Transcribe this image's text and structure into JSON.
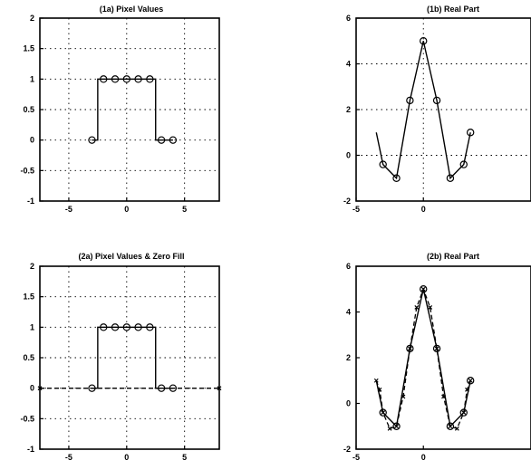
{
  "chart_data": [
    {
      "id": "p1a",
      "type": "line",
      "title": "(1a) Pixel Values",
      "xlim": [
        -7.5,
        8
      ],
      "ylim": [
        -1,
        2
      ],
      "xticks": [
        -5,
        0,
        5
      ],
      "yticks": [
        -1,
        -0.5,
        0,
        0.5,
        1,
        1.5,
        2
      ],
      "ytick_labels": [
        "-1",
        "-0.5",
        "0",
        "0.5",
        "1",
        "1.5",
        "2"
      ],
      "grid": true,
      "series": [
        {
          "style": "step-circles",
          "x": [
            -3,
            -2,
            -1,
            0,
            1,
            2,
            3,
            4
          ],
          "values": [
            0,
            1,
            1,
            1,
            1,
            1,
            0,
            0
          ]
        }
      ]
    },
    {
      "id": "p1b",
      "type": "line",
      "title": "(1b) Real Part",
      "xlim": [
        -5,
        8
      ],
      "ylim": [
        -2,
        6
      ],
      "xticks": [
        -5,
        0
      ],
      "yticks": [
        -2,
        0,
        2,
        4,
        6
      ],
      "ytick_labels": [
        "-2",
        "0",
        "2",
        "4",
        "6"
      ],
      "grid": true,
      "series": [
        {
          "style": "line-circles",
          "x": [
            -3.5,
            -3,
            -2,
            -1,
            0,
            1,
            2,
            3,
            3.5
          ],
          "values": [
            1.0,
            -0.4,
            -1.0,
            2.4,
            5.0,
            2.4,
            -1.0,
            -0.4,
            1.0
          ],
          "markers": [
            false,
            true,
            true,
            true,
            true,
            true,
            true,
            true,
            true
          ]
        }
      ]
    },
    {
      "id": "p2a",
      "type": "line",
      "title": "(2a) Pixel Values & Zero Fill",
      "xlim": [
        -7.5,
        8
      ],
      "ylim": [
        -1,
        2
      ],
      "xticks": [
        -5,
        0,
        5
      ],
      "yticks": [
        -1,
        -0.5,
        0,
        0.5,
        1,
        1.5,
        2
      ],
      "ytick_labels": [
        "-1",
        "-0.5",
        "0",
        "0.5",
        "1",
        "1.5",
        "2"
      ],
      "grid": true,
      "series": [
        {
          "style": "step-circles",
          "x": [
            -3,
            -2,
            -1,
            0,
            1,
            2,
            3,
            4
          ],
          "values": [
            0,
            1,
            1,
            1,
            1,
            1,
            0,
            0
          ]
        },
        {
          "style": "dashed-x",
          "x": [
            -7.5,
            8
          ],
          "values": [
            0,
            0
          ]
        }
      ]
    },
    {
      "id": "p2b",
      "type": "line",
      "title": "(2b) Real Part",
      "xlim": [
        -5,
        8
      ],
      "ylim": [
        -2,
        6
      ],
      "xticks": [
        -5,
        0
      ],
      "yticks": [
        -2,
        0,
        2,
        4,
        6
      ],
      "ytick_labels": [
        "-2",
        "0",
        "2",
        "4",
        "6"
      ],
      "grid": false,
      "series": [
        {
          "style": "line-circles",
          "x": [
            -3.5,
            -3,
            -2,
            -1,
            0,
            1,
            2,
            3,
            3.5
          ],
          "values": [
            1.0,
            -0.4,
            -1.0,
            2.4,
            5.0,
            2.4,
            -1.0,
            -0.4,
            1.0
          ],
          "markers": [
            false,
            true,
            true,
            true,
            true,
            true,
            true,
            true,
            true
          ]
        },
        {
          "style": "dashed-x",
          "x": [
            -3.5,
            -3.25,
            -3,
            -2.5,
            -2,
            -1.5,
            -1,
            -0.5,
            0,
            0.5,
            1,
            1.5,
            2,
            2.5,
            3,
            3.25,
            3.5
          ],
          "values": [
            1.0,
            0.6,
            -0.4,
            -1.1,
            -1.0,
            0.3,
            2.4,
            4.2,
            5.0,
            4.2,
            2.4,
            0.3,
            -1.0,
            -1.1,
            -0.4,
            0.6,
            1.0
          ]
        }
      ]
    }
  ]
}
